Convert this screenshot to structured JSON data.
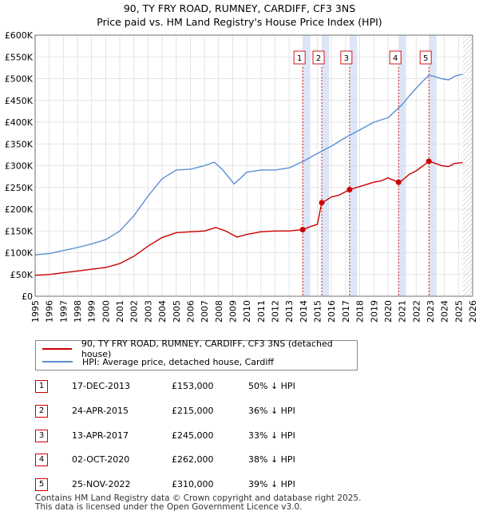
{
  "title_line1": "90, TY FRY ROAD, RUMNEY, CARDIFF, CF3 3NS",
  "title_line2": "Price paid vs. HM Land Registry's House Price Index (HPI)",
  "colors": {
    "property": "#cc0000",
    "hpi": "#5b8fd4",
    "shade": "#dde6f7",
    "marker": "#cc0000"
  },
  "chart_data": {
    "type": "line",
    "title": "90, TY FRY ROAD, RUMNEY, CARDIFF, CF3 3NS — Price paid vs. HM Land Registry's House Price Index (HPI)",
    "xlim": [
      1995,
      2026
    ],
    "ylim": [
      0,
      600000
    ],
    "y_ticks": [
      0,
      50000,
      100000,
      150000,
      200000,
      250000,
      300000,
      350000,
      400000,
      450000,
      500000,
      550000,
      600000
    ],
    "y_tick_labels": [
      "£0",
      "£50K",
      "£100K",
      "£150K",
      "£200K",
      "£250K",
      "£300K",
      "£350K",
      "£400K",
      "£450K",
      "£500K",
      "£550K",
      "£600K"
    ],
    "x_ticks": [
      1995,
      1996,
      1997,
      1998,
      1999,
      2000,
      2001,
      2002,
      2003,
      2004,
      2005,
      2006,
      2007,
      2008,
      2009,
      2010,
      2011,
      2012,
      2013,
      2014,
      2015,
      2016,
      2017,
      2018,
      2019,
      2020,
      2021,
      2022,
      2023,
      2024,
      2025,
      2026
    ],
    "x_tick_labels": [
      "1995",
      "1996",
      "1997",
      "1998",
      "1999",
      "2000",
      "2001",
      "2002",
      "2003",
      "2004",
      "2005",
      "2006",
      "2007",
      "2008",
      "2009",
      "2010",
      "2011",
      "2012",
      "2013",
      "2014",
      "2015",
      "2016",
      "2017",
      "2018",
      "2019",
      "2020",
      "2021",
      "2022",
      "2023",
      "2024",
      "2025",
      "2026"
    ],
    "future_hatch_from": 2025.3,
    "series": [
      {
        "name": "90, TY FRY ROAD, RUMNEY, CARDIFF, CF3 3NS (detached house)",
        "color": "#cc0000",
        "x": [
          1995.0,
          1996.0,
          1997.0,
          1998.0,
          1999.0,
          2000.0,
          2001.0,
          2002.0,
          2003.0,
          2004.0,
          2005.0,
          2006.0,
          2007.0,
          2007.8,
          2008.5,
          2009.3,
          2010.0,
          2011.0,
          2012.0,
          2013.0,
          2013.96,
          2014.5,
          2015.0,
          2015.31,
          2015.5,
          2016.0,
          2016.5,
          2017.28,
          2018.0,
          2019.0,
          2019.5,
          2020.0,
          2020.75,
          2021.0,
          2021.5,
          2022.0,
          2022.5,
          2022.9,
          2023.3,
          2023.8,
          2024.3,
          2024.7,
          2025.0,
          2025.3
        ],
        "y": [
          48000,
          50000,
          54000,
          58000,
          62000,
          66000,
          75000,
          92000,
          115000,
          135000,
          146000,
          148000,
          150000,
          158000,
          150000,
          136000,
          142000,
          148000,
          150000,
          150000,
          153000,
          160000,
          165000,
          215000,
          218000,
          228000,
          232000,
          245000,
          252000,
          262000,
          265000,
          272000,
          262000,
          266000,
          280000,
          288000,
          300000,
          310000,
          306000,
          300000,
          298000,
          305000,
          306000,
          307000
        ]
      },
      {
        "name": "HPI: Average price, detached house, Cardiff",
        "color": "#5b8fd4",
        "x": [
          1995.0,
          1996.0,
          1997.0,
          1998.0,
          1999.0,
          2000.0,
          2001.0,
          2002.0,
          2003.0,
          2004.0,
          2005.0,
          2006.0,
          2007.0,
          2007.7,
          2008.3,
          2009.1,
          2010.0,
          2011.0,
          2012.0,
          2013.0,
          2014.0,
          2015.0,
          2016.0,
          2017.0,
          2018.0,
          2019.0,
          2020.0,
          2021.0,
          2021.5,
          2022.0,
          2022.5,
          2022.9,
          2023.3,
          2023.8,
          2024.3,
          2024.7,
          2025.0,
          2025.3
        ],
        "y": [
          95000,
          98000,
          105000,
          112000,
          120000,
          130000,
          150000,
          185000,
          230000,
          270000,
          290000,
          292000,
          300000,
          308000,
          290000,
          258000,
          285000,
          290000,
          290000,
          295000,
          310000,
          328000,
          345000,
          365000,
          382000,
          400000,
          410000,
          440000,
          460000,
          478000,
          495000,
          508000,
          505000,
          500000,
          497000,
          505000,
          508000,
          510000
        ]
      }
    ],
    "sales": [
      {
        "label": "1",
        "x": 2013.96,
        "y": 153000,
        "band_end": 2014.5
      },
      {
        "label": "2",
        "x": 2015.31,
        "y": 215000,
        "band_end": 2015.85
      },
      {
        "label": "3",
        "x": 2017.28,
        "y": 245000,
        "band_end": 2017.82
      },
      {
        "label": "4",
        "x": 2020.75,
        "y": 262000,
        "band_end": 2021.29
      },
      {
        "label": "5",
        "x": 2022.9,
        "y": 310000,
        "band_end": 2023.44
      }
    ]
  },
  "legend": {
    "property_label": "90, TY FRY ROAD, RUMNEY, CARDIFF, CF3 3NS (detached house)",
    "hpi_label": "HPI: Average price, detached house, Cardiff"
  },
  "sales_table": [
    {
      "num": "1",
      "date": "17-DEC-2013",
      "price": "£153,000",
      "pct": "50% ↓ HPI"
    },
    {
      "num": "2",
      "date": "24-APR-2015",
      "price": "£215,000",
      "pct": "36% ↓ HPI"
    },
    {
      "num": "3",
      "date": "13-APR-2017",
      "price": "£245,000",
      "pct": "33% ↓ HPI"
    },
    {
      "num": "4",
      "date": "02-OCT-2020",
      "price": "£262,000",
      "pct": "38% ↓ HPI"
    },
    {
      "num": "5",
      "date": "25-NOV-2022",
      "price": "£310,000",
      "pct": "39% ↓ HPI"
    }
  ],
  "footer_line1": "Contains HM Land Registry data © Crown copyright and database right 2025.",
  "footer_line2": "This data is licensed under the Open Government Licence v3.0."
}
